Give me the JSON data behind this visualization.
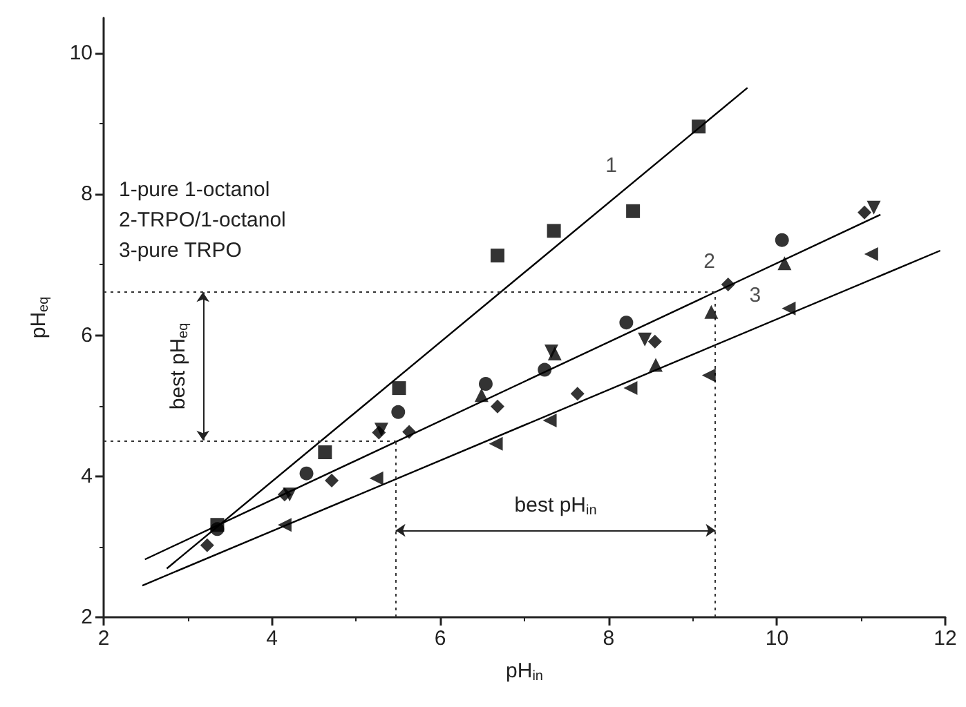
{
  "chart_data": {
    "type": "scatter",
    "xlabel": "pH$_{in}$",
    "ylabel": "pH$_{eq}$",
    "xlim": [
      2,
      12
    ],
    "ylim": [
      2,
      10.5
    ],
    "xticks": [
      2,
      4,
      6,
      8,
      10,
      12
    ],
    "yticks": [
      2,
      4,
      6,
      8,
      10
    ],
    "grid": false,
    "series": [
      {
        "color": "#000000",
        "marker": "square",
        "x": [
          3.35,
          4.63,
          5.51,
          6.68,
          7.35,
          8.29,
          9.07
        ],
        "values": [
          3.31,
          4.34,
          5.25,
          7.13,
          7.48,
          7.76,
          8.96
        ]
      },
      {
        "color": "#000000",
        "marker": "circle",
        "x": [
          3.35,
          4.41,
          5.5,
          6.54,
          7.24,
          8.21,
          10.06
        ],
        "values": [
          3.25,
          4.04,
          4.91,
          5.31,
          5.51,
          6.18,
          7.35
        ]
      },
      {
        "color": "#000000",
        "marker": "triangle",
        "x": [
          6.49,
          7.36,
          8.56,
          9.22,
          10.09
        ],
        "values": [
          5.15,
          5.74,
          5.58,
          6.33,
          7.02
        ]
      },
      {
        "color": "#000000",
        "marker": "triangle-down",
        "x": [
          4.21,
          5.3,
          7.32,
          8.43,
          11.15
        ],
        "values": [
          3.74,
          4.66,
          5.77,
          5.94,
          7.81
        ]
      },
      {
        "color": "#000000",
        "marker": "diamond",
        "x": [
          3.23,
          4.15,
          4.71,
          5.27,
          5.63,
          6.68,
          7.63,
          8.55,
          9.42,
          11.04
        ],
        "values": [
          3.02,
          3.74,
          3.94,
          4.62,
          4.63,
          4.99,
          5.17,
          5.91,
          6.72,
          7.74
        ]
      },
      {
        "color": "#000000",
        "marker": "triangle-left",
        "x": [
          4.15,
          5.24,
          6.66,
          7.3,
          8.26,
          9.19,
          10.14,
          11.12
        ],
        "values": [
          3.31,
          3.97,
          4.46,
          4.79,
          5.25,
          5.43,
          6.38,
          7.15
        ]
      },
      {
        "type": "line",
        "color": "#000000",
        "marker": "none",
        "x": [
          2.75,
          9.65
        ],
        "values": [
          2.69,
          9.51
        ]
      },
      {
        "type": "line",
        "color": "#000000",
        "marker": "none",
        "x": [
          2.49,
          11.23
        ],
        "values": [
          2.82,
          7.71
        ]
      },
      {
        "type": "line",
        "color": "#000000",
        "marker": "none",
        "x": [
          2.46,
          11.94
        ],
        "values": [
          2.45,
          7.2
        ]
      }
    ],
    "ref_lines": [
      {
        "axis": "y",
        "value": 4.51,
        "line_style": "dotted"
      },
      {
        "axis": "y",
        "value": 6.61,
        "line_style": "dotted"
      },
      {
        "axis": "x",
        "value": 5.47,
        "line_style": "dotted"
      },
      {
        "axis": "x",
        "value": 9.27,
        "line_style": "dotted"
      }
    ],
    "annotations": [
      "1-pure 1-octanol",
      "2-TRPO/1-octanol",
      "3-pure TRPO",
      "1",
      "2",
      "3",
      "best pH$_{eq}$",
      "best pH$_{in}$"
    ]
  }
}
